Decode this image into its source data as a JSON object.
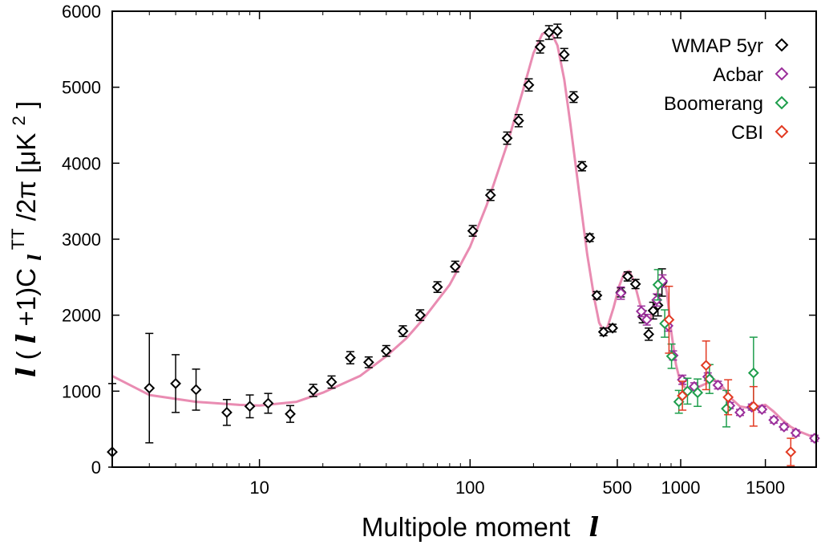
{
  "chart_data": {
    "type": "scatter",
    "title": "",
    "xlabel": {
      "text": "Multipole moment",
      "symbol": "l"
    },
    "ylabel": {
      "prefix_symbol": "l",
      "open": "(",
      "symbol2": "l",
      "mid": "+1)C",
      "sub": "l",
      "sup": "TT",
      "tail": "/2π [μK",
      "sup2": "2",
      "close": "]"
    },
    "x_scale": "piecewise log (2–1000) / linear (1000–1800)",
    "xlim": [
      2,
      1800
    ],
    "ylim": [
      0,
      6000
    ],
    "grid": false,
    "legend_position": "top-right",
    "x_ticks": [
      {
        "value": 10,
        "label": "10"
      },
      {
        "value": 100,
        "label": "100"
      },
      {
        "value": 500,
        "label": "500"
      },
      {
        "value": 1000,
        "label": "1000"
      },
      {
        "value": 1500,
        "label": "1500"
      }
    ],
    "y_ticks": [
      {
        "value": 0,
        "label": "0"
      },
      {
        "value": 1000,
        "label": "1000"
      },
      {
        "value": 2000,
        "label": "2000"
      },
      {
        "value": 3000,
        "label": "3000"
      },
      {
        "value": 4000,
        "label": "4000"
      },
      {
        "value": 5000,
        "label": "5000"
      },
      {
        "value": 6000,
        "label": "6000"
      }
    ],
    "model_curve": {
      "color": "#e98cb2",
      "points": [
        [
          2,
          1200
        ],
        [
          3,
          950
        ],
        [
          5,
          860
        ],
        [
          8,
          820
        ],
        [
          10,
          810
        ],
        [
          15,
          860
        ],
        [
          20,
          980
        ],
        [
          30,
          1200
        ],
        [
          40,
          1460
        ],
        [
          50,
          1700
        ],
        [
          60,
          1950
        ],
        [
          80,
          2400
        ],
        [
          100,
          2900
        ],
        [
          120,
          3450
        ],
        [
          150,
          4250
        ],
        [
          180,
          5000
        ],
        [
          200,
          5450
        ],
        [
          220,
          5700
        ],
        [
          240,
          5750
        ],
        [
          260,
          5550
        ],
        [
          280,
          5100
        ],
        [
          300,
          4500
        ],
        [
          330,
          3600
        ],
        [
          360,
          2800
        ],
        [
          390,
          2200
        ],
        [
          410,
          1900
        ],
        [
          430,
          1800
        ],
        [
          450,
          1850
        ],
        [
          480,
          2100
        ],
        [
          510,
          2380
        ],
        [
          540,
          2560
        ],
        [
          570,
          2580
        ],
        [
          600,
          2450
        ],
        [
          640,
          2150
        ],
        [
          680,
          1950
        ],
        [
          720,
          1960
        ],
        [
          760,
          2200
        ],
        [
          800,
          2450
        ],
        [
          830,
          2500
        ],
        [
          860,
          2300
        ],
        [
          900,
          1800
        ],
        [
          950,
          1350
        ],
        [
          1000,
          1100
        ],
        [
          1050,
          1000
        ],
        [
          1100,
          1050
        ],
        [
          1150,
          1100
        ],
        [
          1200,
          1150
        ],
        [
          1250,
          1050
        ],
        [
          1300,
          900
        ],
        [
          1350,
          800
        ],
        [
          1400,
          780
        ],
        [
          1450,
          800
        ],
        [
          1500,
          820
        ],
        [
          1550,
          730
        ],
        [
          1600,
          620
        ],
        [
          1650,
          530
        ],
        [
          1700,
          470
        ],
        [
          1800,
          380
        ]
      ]
    },
    "series": [
      {
        "name": "WMAP 5yr",
        "color": "#000000",
        "points": [
          {
            "x": 2,
            "y": 200,
            "err": 900
          },
          {
            "x": 3,
            "y": 1040,
            "err": 720
          },
          {
            "x": 4,
            "y": 1100,
            "err": 380
          },
          {
            "x": 5,
            "y": 1020,
            "err": 270
          },
          {
            "x": 7,
            "y": 720,
            "err": 170
          },
          {
            "x": 9,
            "y": 800,
            "err": 150
          },
          {
            "x": 11,
            "y": 840,
            "err": 130
          },
          {
            "x": 14,
            "y": 700,
            "err": 110
          },
          {
            "x": 18,
            "y": 1010,
            "err": 80
          },
          {
            "x": 22,
            "y": 1120,
            "err": 80
          },
          {
            "x": 27,
            "y": 1440,
            "err": 80
          },
          {
            "x": 33,
            "y": 1380,
            "err": 70
          },
          {
            "x": 40,
            "y": 1530,
            "err": 70
          },
          {
            "x": 48,
            "y": 1790,
            "err": 70
          },
          {
            "x": 58,
            "y": 2000,
            "err": 70
          },
          {
            "x": 70,
            "y": 2370,
            "err": 70
          },
          {
            "x": 85,
            "y": 2640,
            "err": 70
          },
          {
            "x": 103,
            "y": 3110,
            "err": 70
          },
          {
            "x": 125,
            "y": 3580,
            "err": 70
          },
          {
            "x": 150,
            "y": 4330,
            "err": 80
          },
          {
            "x": 170,
            "y": 4560,
            "err": 80
          },
          {
            "x": 190,
            "y": 5030,
            "err": 80
          },
          {
            "x": 215,
            "y": 5530,
            "err": 80
          },
          {
            "x": 237,
            "y": 5720,
            "err": 90
          },
          {
            "x": 260,
            "y": 5740,
            "err": 90
          },
          {
            "x": 280,
            "y": 5430,
            "err": 80
          },
          {
            "x": 310,
            "y": 4870,
            "err": 70
          },
          {
            "x": 340,
            "y": 3960,
            "err": 60
          },
          {
            "x": 370,
            "y": 3020,
            "err": 50
          },
          {
            "x": 400,
            "y": 2260,
            "err": 50
          },
          {
            "x": 430,
            "y": 1780,
            "err": 50
          },
          {
            "x": 475,
            "y": 1830,
            "err": 50
          },
          {
            "x": 520,
            "y": 2300,
            "err": 60
          },
          {
            "x": 560,
            "y": 2510,
            "err": 60
          },
          {
            "x": 610,
            "y": 2410,
            "err": 60
          },
          {
            "x": 660,
            "y": 1980,
            "err": 80
          },
          {
            "x": 705,
            "y": 1750,
            "err": 80
          },
          {
            "x": 740,
            "y": 2060,
            "err": 110
          },
          {
            "x": 780,
            "y": 2130,
            "err": 140
          },
          {
            "x": 815,
            "y": 2430,
            "err": 180
          }
        ]
      },
      {
        "name": "Acbar",
        "color": "#9b2f9b",
        "points": [
          {
            "x": 520,
            "y": 2290,
            "err": 80
          },
          {
            "x": 650,
            "y": 2050,
            "err": 70
          },
          {
            "x": 690,
            "y": 1940,
            "err": 70
          },
          {
            "x": 770,
            "y": 2200,
            "err": 80
          },
          {
            "x": 820,
            "y": 2450,
            "err": 80
          },
          {
            "x": 870,
            "y": 1860,
            "err": 70
          },
          {
            "x": 920,
            "y": 1470,
            "err": 60
          },
          {
            "x": 1010,
            "y": 1150,
            "err": 60
          },
          {
            "x": 1080,
            "y": 1060,
            "err": 50
          },
          {
            "x": 1160,
            "y": 1190,
            "err": 50
          },
          {
            "x": 1220,
            "y": 1080,
            "err": 50
          },
          {
            "x": 1290,
            "y": 810,
            "err": 40
          },
          {
            "x": 1350,
            "y": 720,
            "err": 40
          },
          {
            "x": 1420,
            "y": 790,
            "err": 40
          },
          {
            "x": 1480,
            "y": 760,
            "err": 40
          },
          {
            "x": 1550,
            "y": 620,
            "err": 40
          },
          {
            "x": 1610,
            "y": 530,
            "err": 40
          },
          {
            "x": 1680,
            "y": 450,
            "err": 40
          },
          {
            "x": 1790,
            "y": 380,
            "err": 40
          }
        ]
      },
      {
        "name": "Boomerang",
        "color": "#1e9e4c",
        "points": [
          {
            "x": 780,
            "y": 2400,
            "err": 200
          },
          {
            "x": 840,
            "y": 1890,
            "err": 180
          },
          {
            "x": 905,
            "y": 1460,
            "err": 160
          },
          {
            "x": 980,
            "y": 860,
            "err": 150
          },
          {
            "x": 1040,
            "y": 1000,
            "err": 170
          },
          {
            "x": 1100,
            "y": 980,
            "err": 180
          },
          {
            "x": 1170,
            "y": 1160,
            "err": 190
          },
          {
            "x": 1270,
            "y": 770,
            "err": 240
          },
          {
            "x": 1430,
            "y": 1240,
            "err": 470
          }
        ]
      },
      {
        "name": "CBI",
        "color": "#e23a22",
        "points": [
          {
            "x": 880,
            "y": 1940,
            "err": 440
          },
          {
            "x": 1010,
            "y": 940,
            "err": 190
          },
          {
            "x": 1150,
            "y": 1340,
            "err": 320
          },
          {
            "x": 1280,
            "y": 920,
            "err": 230
          },
          {
            "x": 1430,
            "y": 800,
            "err": 260
          },
          {
            "x": 1650,
            "y": 200,
            "err": 180
          }
        ]
      }
    ]
  }
}
